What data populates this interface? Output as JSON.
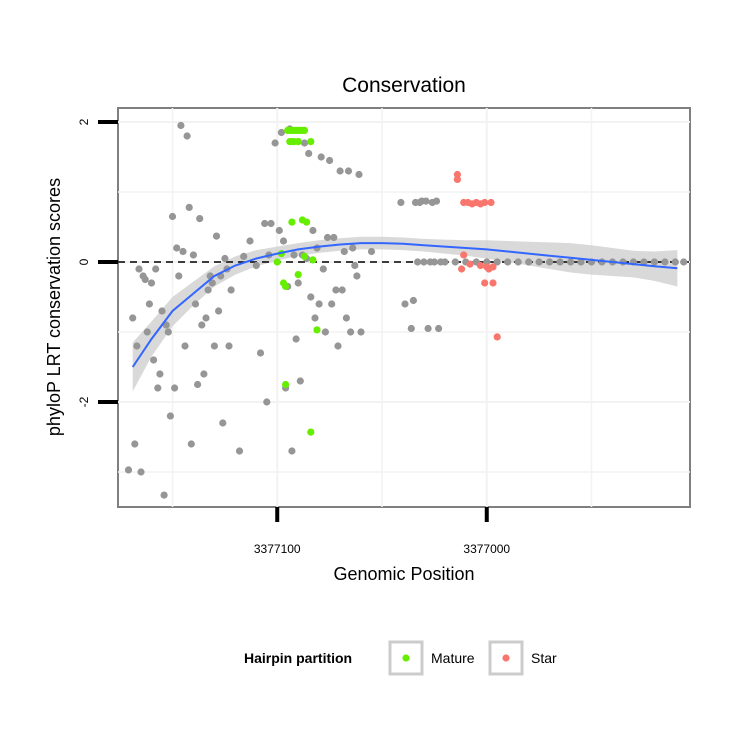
{
  "chart_data": {
    "type": "scatter",
    "title": "Conservation",
    "xlabel": "Genomic Position",
    "ylabel": "phyloP LRT conservation scores",
    "x_reversed": true,
    "xlim": [
      3377176,
      3376903
    ],
    "ylim": [
      -3.5,
      2.2
    ],
    "x_ticks": [
      3377100,
      3377000
    ],
    "x_tick_labels": [
      "3377100",
      "3377000"
    ],
    "y_ticks": [
      2,
      0,
      -2
    ],
    "y_tick_labels": [
      "2",
      "0",
      "-2"
    ],
    "grid": true,
    "reference_line": {
      "y": 0,
      "style": "dashed",
      "color": "#000000"
    },
    "legend": {
      "title": "Hairpin partition",
      "position": "bottom",
      "entries": [
        {
          "label": "Mature",
          "color": "#66ee00"
        },
        {
          "label": "Star",
          "color": "#f8766d"
        }
      ]
    },
    "series": [
      {
        "name": "Other",
        "color": "#969696",
        "points": [
          [
            3377171,
            -2.97
          ],
          [
            3377169,
            -0.8
          ],
          [
            3377168,
            -2.6
          ],
          [
            3377167,
            -1.2
          ],
          [
            3377166,
            -0.1
          ],
          [
            3377165,
            -3.0
          ],
          [
            3377164,
            -0.2
          ],
          [
            3377163,
            -0.25
          ],
          [
            3377162,
            -1.0
          ],
          [
            3377161,
            -0.6
          ],
          [
            3377160,
            -0.3
          ],
          [
            3377159,
            -1.4
          ],
          [
            3377158,
            -0.1
          ],
          [
            3377157,
            -1.8
          ],
          [
            3377156,
            -1.6
          ],
          [
            3377155,
            -0.7
          ],
          [
            3377154,
            -3.33
          ],
          [
            3377153,
            -0.9
          ],
          [
            3377152,
            -1.0
          ],
          [
            3377151,
            -2.2
          ],
          [
            3377150,
            0.65
          ],
          [
            3377149,
            -1.8
          ],
          [
            3377148,
            0.2
          ],
          [
            3377147,
            -0.2
          ],
          [
            3377146,
            1.95
          ],
          [
            3377145,
            0.15
          ],
          [
            3377144,
            -1.2
          ],
          [
            3377143,
            1.8
          ],
          [
            3377142,
            0.78
          ],
          [
            3377141,
            -2.6
          ],
          [
            3377140,
            0.1
          ],
          [
            3377139,
            -0.6
          ],
          [
            3377138,
            -1.75
          ],
          [
            3377137,
            0.62
          ],
          [
            3377136,
            -0.9
          ],
          [
            3377135,
            -1.6
          ],
          [
            3377134,
            -0.8
          ],
          [
            3377133,
            -0.4
          ],
          [
            3377132,
            -0.2
          ],
          [
            3377131,
            -0.3
          ],
          [
            3377130,
            -1.2
          ],
          [
            3377129,
            0.37
          ],
          [
            3377128,
            -0.7
          ],
          [
            3377127,
            -0.2
          ],
          [
            3377126,
            -2.3
          ],
          [
            3377125,
            0.05
          ],
          [
            3377124,
            -0.1
          ],
          [
            3377123,
            -1.2
          ],
          [
            3377122,
            -0.4
          ],
          [
            3377118,
            -2.7
          ],
          [
            3377116,
            0.08
          ],
          [
            3377113,
            0.3
          ],
          [
            3377110,
            -0.05
          ],
          [
            3377108,
            -1.3
          ],
          [
            3377106,
            0.55
          ],
          [
            3377105,
            -2.0
          ],
          [
            3377104,
            0.1
          ],
          [
            3377103,
            0.55
          ],
          [
            3377101,
            1.7
          ],
          [
            3377099,
            0.45
          ],
          [
            3377098,
            1.85
          ],
          [
            3377097,
            0.3
          ],
          [
            3377096,
            -1.8
          ],
          [
            3377095,
            -0.35
          ],
          [
            3377094,
            1.9
          ],
          [
            3377093,
            -2.7
          ],
          [
            3377092,
            0.1
          ],
          [
            3377091,
            -1.1
          ],
          [
            3377090,
            -0.3
          ],
          [
            3377089,
            -1.7
          ],
          [
            3377088,
            0.1
          ],
          [
            3377087,
            1.7
          ],
          [
            3377086,
            0.05
          ],
          [
            3377085,
            1.55
          ],
          [
            3377084,
            -0.5
          ],
          [
            3377083,
            0.45
          ],
          [
            3377082,
            -0.8
          ],
          [
            3377081,
            0.2
          ],
          [
            3377080,
            -0.6
          ],
          [
            3377079,
            1.5
          ],
          [
            3377078,
            -0.1
          ],
          [
            3377077,
            -1.0
          ],
          [
            3377076,
            0.35
          ],
          [
            3377075,
            1.45
          ],
          [
            3377074,
            -0.6
          ],
          [
            3377073,
            0.35
          ],
          [
            3377072,
            -0.4
          ],
          [
            3377071,
            -1.2
          ],
          [
            3377070,
            1.3
          ],
          [
            3377069,
            -0.4
          ],
          [
            3377068,
            0.15
          ],
          [
            3377067,
            -0.8
          ],
          [
            3377066,
            1.3
          ],
          [
            3377065,
            -1.0
          ],
          [
            3377064,
            0.2
          ],
          [
            3377063,
            -0.05
          ],
          [
            3377062,
            -0.2
          ],
          [
            3377061,
            1.25
          ],
          [
            3377060,
            -1.0
          ],
          [
            3377055,
            0.15
          ],
          [
            3377041,
            0.85
          ],
          [
            3377039,
            -0.6
          ],
          [
            3377036,
            -0.95
          ],
          [
            3377035,
            -0.55
          ],
          [
            3377034,
            0.85
          ],
          [
            3377033,
            0.0
          ],
          [
            3377032,
            0.85
          ],
          [
            3377031,
            0.87
          ],
          [
            3377030,
            0.0
          ],
          [
            3377029,
            0.87
          ],
          [
            3377028,
            -0.95
          ],
          [
            3377027,
            0.0
          ],
          [
            3377026,
            0.85
          ],
          [
            3377025,
            0.0
          ],
          [
            3377024,
            0.87
          ],
          [
            3377023,
            -0.95
          ],
          [
            3377022,
            0.0
          ],
          [
            3377020,
            0.0
          ],
          [
            3377015,
            0.0
          ],
          [
            3377010,
            0.0
          ],
          [
            3377005,
            0.0
          ],
          [
            3377000,
            0.0
          ],
          [
            3376995,
            0.0
          ],
          [
            3376990,
            0.0
          ],
          [
            3376985,
            0.0
          ],
          [
            3376980,
            0.0
          ],
          [
            3376975,
            0.0
          ],
          [
            3376970,
            0.0
          ],
          [
            3376965,
            0.0
          ],
          [
            3376960,
            0.0
          ],
          [
            3376955,
            0.0
          ],
          [
            3376950,
            0.0
          ],
          [
            3376945,
            0.0
          ],
          [
            3376940,
            0.0
          ],
          [
            3376935,
            0.0
          ],
          [
            3376930,
            0.0
          ],
          [
            3376925,
            0.0
          ],
          [
            3376920,
            0.0
          ],
          [
            3376915,
            0.0
          ],
          [
            3376910,
            0.0
          ],
          [
            3376906,
            0.0
          ]
        ]
      },
      {
        "name": "Mature",
        "color": "#66ee00",
        "points": [
          [
            3377095,
            1.88
          ],
          [
            3377094,
            1.88
          ],
          [
            3377093,
            1.88
          ],
          [
            3377092,
            1.88
          ],
          [
            3377091,
            1.88
          ],
          [
            3377090,
            1.88
          ],
          [
            3377089,
            1.88
          ],
          [
            3377088,
            1.88
          ],
          [
            3377087,
            1.88
          ],
          [
            3377094,
            1.72
          ],
          [
            3377093,
            1.72
          ],
          [
            3377092,
            1.72
          ],
          [
            3377090,
            1.72
          ],
          [
            3377090,
            1.72
          ],
          [
            3377084,
            1.72
          ],
          [
            3377093,
            0.57
          ],
          [
            3377088,
            0.6
          ],
          [
            3377086,
            0.57
          ],
          [
            3377098,
            0.12
          ],
          [
            3377100,
            0.0
          ],
          [
            3377097,
            -0.3
          ],
          [
            3377096,
            -0.35
          ],
          [
            3377090,
            -0.18
          ],
          [
            3377087,
            0.08
          ],
          [
            3377083,
            0.03
          ],
          [
            3377081,
            -0.97
          ],
          [
            3377096,
            -1.75
          ],
          [
            3377084,
            -2.43
          ]
        ]
      },
      {
        "name": "Star",
        "color": "#f8766d",
        "points": [
          [
            3377014,
            1.25
          ],
          [
            3377014,
            1.18
          ],
          [
            3377011,
            0.85
          ],
          [
            3377009,
            0.85
          ],
          [
            3377007,
            0.83
          ],
          [
            3377005,
            0.85
          ],
          [
            3377003,
            0.83
          ],
          [
            3377001,
            0.85
          ],
          [
            3376998,
            0.85
          ],
          [
            3377011,
            0.1
          ],
          [
            3377008,
            -0.03
          ],
          [
            3377003,
            -0.05
          ],
          [
            3377000,
            -0.07
          ],
          [
            3376997,
            -0.07
          ],
          [
            3377001,
            -0.3
          ],
          [
            3376997,
            -0.3
          ],
          [
            3376995,
            -1.07
          ],
          [
            3377012,
            -0.1
          ],
          [
            3376999,
            -0.1
          ]
        ]
      }
    ],
    "smooth": {
      "color": "#3366ff",
      "band_color": "#cccccc",
      "fit": [
        [
          3377169,
          -1.5
        ],
        [
          3377160,
          -1.1
        ],
        [
          3377150,
          -0.7
        ],
        [
          3377140,
          -0.45
        ],
        [
          3377130,
          -0.2
        ],
        [
          3377120,
          -0.05
        ],
        [
          3377110,
          0.05
        ],
        [
          3377100,
          0.12
        ],
        [
          3377090,
          0.18
        ],
        [
          3377080,
          0.22
        ],
        [
          3377070,
          0.25
        ],
        [
          3377060,
          0.27
        ],
        [
          3377050,
          0.27
        ],
        [
          3377040,
          0.26
        ],
        [
          3377030,
          0.24
        ],
        [
          3377020,
          0.22
        ],
        [
          3377010,
          0.2
        ],
        [
          3377000,
          0.18
        ],
        [
          3376990,
          0.15
        ],
        [
          3376980,
          0.12
        ],
        [
          3376970,
          0.09
        ],
        [
          3376960,
          0.06
        ],
        [
          3376950,
          0.03
        ],
        [
          3376940,
          0.0
        ],
        [
          3376930,
          -0.03
        ],
        [
          3376920,
          -0.06
        ],
        [
          3376909,
          -0.09
        ]
      ],
      "lower": [
        [
          3377169,
          -1.85
        ],
        [
          3377160,
          -1.35
        ],
        [
          3377150,
          -0.92
        ],
        [
          3377140,
          -0.62
        ],
        [
          3377130,
          -0.35
        ],
        [
          3377120,
          -0.18
        ],
        [
          3377110,
          -0.06
        ],
        [
          3377100,
          0.02
        ],
        [
          3377090,
          0.09
        ],
        [
          3377080,
          0.13
        ],
        [
          3377070,
          0.16
        ],
        [
          3377060,
          0.18
        ],
        [
          3377050,
          0.18
        ],
        [
          3377040,
          0.17
        ],
        [
          3377030,
          0.15
        ],
        [
          3377020,
          0.12
        ],
        [
          3377010,
          0.09
        ],
        [
          3377000,
          0.05
        ],
        [
          3376990,
          0.0
        ],
        [
          3376980,
          -0.05
        ],
        [
          3376970,
          -0.1
        ],
        [
          3376960,
          -0.15
        ],
        [
          3376950,
          -0.18
        ],
        [
          3376940,
          -0.2
        ],
        [
          3376930,
          -0.22
        ],
        [
          3376920,
          -0.27
        ],
        [
          3376909,
          -0.35
        ]
      ],
      "upper": [
        [
          3377169,
          -1.15
        ],
        [
          3377160,
          -0.85
        ],
        [
          3377150,
          -0.5
        ],
        [
          3377140,
          -0.28
        ],
        [
          3377130,
          -0.06
        ],
        [
          3377120,
          0.08
        ],
        [
          3377110,
          0.17
        ],
        [
          3377100,
          0.22
        ],
        [
          3377090,
          0.27
        ],
        [
          3377080,
          0.31
        ],
        [
          3377070,
          0.34
        ],
        [
          3377060,
          0.36
        ],
        [
          3377050,
          0.36
        ],
        [
          3377040,
          0.35
        ],
        [
          3377030,
          0.33
        ],
        [
          3377020,
          0.32
        ],
        [
          3377010,
          0.31
        ],
        [
          3377000,
          0.31
        ],
        [
          3376990,
          0.3
        ],
        [
          3376980,
          0.29
        ],
        [
          3376970,
          0.28
        ],
        [
          3376960,
          0.27
        ],
        [
          3376950,
          0.24
        ],
        [
          3376940,
          0.2
        ],
        [
          3376930,
          0.16
        ],
        [
          3376920,
          0.15
        ],
        [
          3376909,
          0.17
        ]
      ]
    }
  }
}
